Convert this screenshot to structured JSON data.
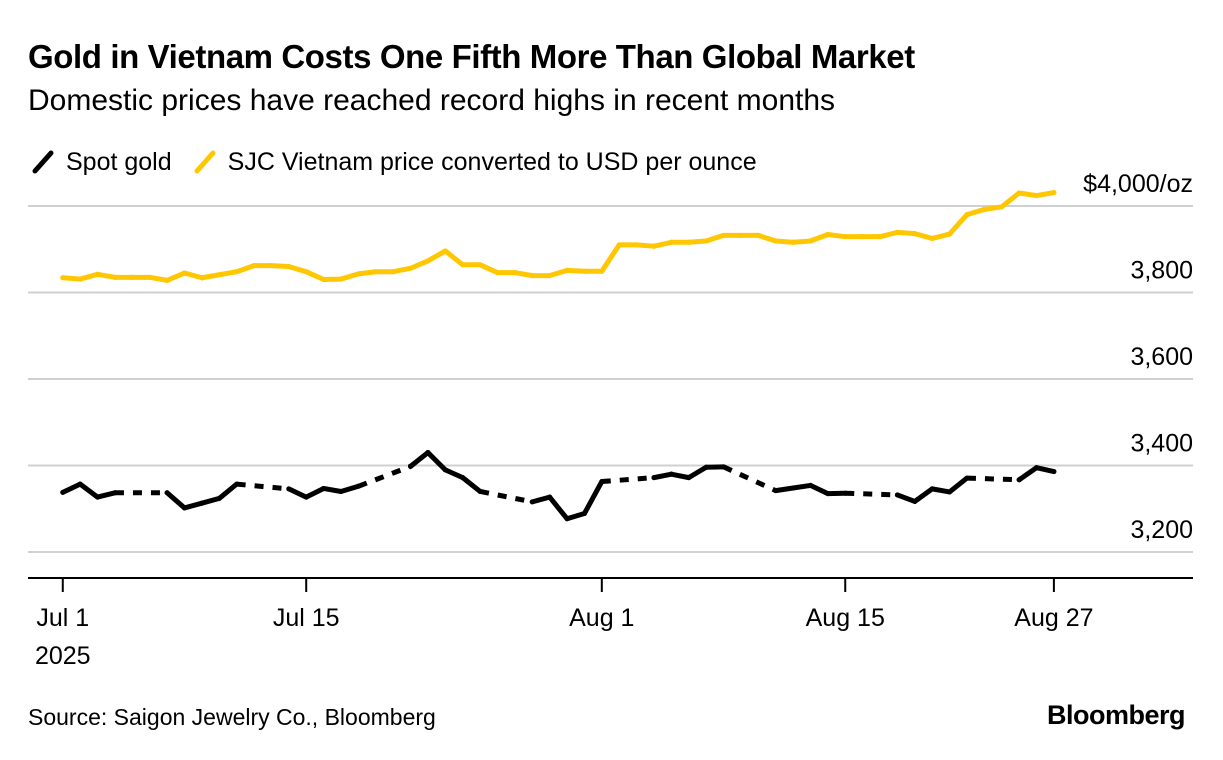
{
  "header": {
    "title": "Gold in Vietnam Costs One Fifth More Than Global Market",
    "subtitle": "Domestic prices have reached record highs in recent months"
  },
  "footer": {
    "source": "Source: Saigon Jewelry Co., Bloomberg",
    "logo": "Bloomberg"
  },
  "chart_data": {
    "type": "line",
    "title": "Gold in Vietnam Costs One Fifth More Than Global Market",
    "subtitle": "Domestic prices have reached record highs in recent months",
    "xlim": [
      "2025-06-29",
      "2025-09-04"
    ],
    "ylim": [
      3140,
      4060
    ],
    "y_ticks": [
      {
        "value": 4000,
        "label": "$4,000/oz"
      },
      {
        "value": 3800,
        "label": "3,800"
      },
      {
        "value": 3600,
        "label": "3,600"
      },
      {
        "value": 3400,
        "label": "3,400"
      },
      {
        "value": 3200,
        "label": "3,200"
      }
    ],
    "x_ticks": [
      {
        "date": "2025-07-01",
        "label": "Jul 1",
        "sublabel": "2025"
      },
      {
        "date": "2025-07-15",
        "label": "Jul 15"
      },
      {
        "date": "2025-08-01",
        "label": "Aug 1"
      },
      {
        "date": "2025-08-15",
        "label": "Aug 15"
      },
      {
        "date": "2025-08-27",
        "label": "Aug 27"
      }
    ],
    "grid": "horizontal",
    "legend_position": "top-left",
    "series": [
      {
        "name": "Spot gold",
        "color": "#000000",
        "legend_icon": "black-slash-icon",
        "points": [
          [
            "2025-07-01",
            3338
          ],
          [
            "2025-07-02",
            3357
          ],
          [
            "2025-07-03",
            3327
          ],
          [
            "2025-07-04",
            3337
          ],
          [
            "2025-07-07",
            3337
          ],
          [
            "2025-07-08",
            3302
          ],
          [
            "2025-07-09",
            3313
          ],
          [
            "2025-07-10",
            3324
          ],
          [
            "2025-07-11",
            3357
          ],
          [
            "2025-07-14",
            3346
          ],
          [
            "2025-07-15",
            3327
          ],
          [
            "2025-07-16",
            3347
          ],
          [
            "2025-07-17",
            3340
          ],
          [
            "2025-07-18",
            3352
          ],
          [
            "2025-07-21",
            3398
          ],
          [
            "2025-07-22",
            3430
          ],
          [
            "2025-07-23",
            3390
          ],
          [
            "2025-07-24",
            3372
          ],
          [
            "2025-07-25",
            3340
          ],
          [
            "2025-07-28",
            3316
          ],
          [
            "2025-07-29",
            3327
          ],
          [
            "2025-07-30",
            3277
          ],
          [
            "2025-07-31",
            3289
          ],
          [
            "2025-08-01",
            3363
          ],
          [
            "2025-08-04",
            3372
          ],
          [
            "2025-08-05",
            3380
          ],
          [
            "2025-08-06",
            3372
          ],
          [
            "2025-08-07",
            3396
          ],
          [
            "2025-08-08",
            3397
          ],
          [
            "2025-08-11",
            3342
          ],
          [
            "2025-08-12",
            3348
          ],
          [
            "2025-08-13",
            3354
          ],
          [
            "2025-08-14",
            3335
          ],
          [
            "2025-08-15",
            3336
          ],
          [
            "2025-08-18",
            3332
          ],
          [
            "2025-08-19",
            3317
          ],
          [
            "2025-08-20",
            3346
          ],
          [
            "2025-08-21",
            3339
          ],
          [
            "2025-08-22",
            3371
          ],
          [
            "2025-08-25",
            3367
          ],
          [
            "2025-08-26",
            3395
          ],
          [
            "2025-08-27",
            3386
          ]
        ]
      },
      {
        "name": "SJC Vietnam price converted to USD per ounce",
        "color": "#FFC700",
        "legend_icon": "yellow-slash-icon",
        "points": [
          [
            "2025-07-01",
            3834
          ],
          [
            "2025-07-02",
            3831
          ],
          [
            "2025-07-03",
            3842
          ],
          [
            "2025-07-04",
            3835
          ],
          [
            "2025-07-05",
            3835
          ],
          [
            "2025-07-06",
            3835
          ],
          [
            "2025-07-07",
            3828
          ],
          [
            "2025-07-08",
            3845
          ],
          [
            "2025-07-09",
            3834
          ],
          [
            "2025-07-10",
            3841
          ],
          [
            "2025-07-11",
            3848
          ],
          [
            "2025-07-12",
            3862
          ],
          [
            "2025-07-13",
            3862
          ],
          [
            "2025-07-14",
            3860
          ],
          [
            "2025-07-15",
            3848
          ],
          [
            "2025-07-16",
            3830
          ],
          [
            "2025-07-17",
            3831
          ],
          [
            "2025-07-18",
            3843
          ],
          [
            "2025-07-19",
            3848
          ],
          [
            "2025-07-20",
            3848
          ],
          [
            "2025-07-21",
            3856
          ],
          [
            "2025-07-22",
            3873
          ],
          [
            "2025-07-23",
            3896
          ],
          [
            "2025-07-24",
            3864
          ],
          [
            "2025-07-25",
            3864
          ],
          [
            "2025-07-26",
            3846
          ],
          [
            "2025-07-27",
            3846
          ],
          [
            "2025-07-28",
            3839
          ],
          [
            "2025-07-29",
            3839
          ],
          [
            "2025-07-30",
            3851
          ],
          [
            "2025-07-31",
            3849
          ],
          [
            "2025-08-01",
            3849
          ],
          [
            "2025-08-02",
            3910
          ],
          [
            "2025-08-03",
            3910
          ],
          [
            "2025-08-04",
            3907
          ],
          [
            "2025-08-05",
            3916
          ],
          [
            "2025-08-06",
            3916
          ],
          [
            "2025-08-07",
            3919
          ],
          [
            "2025-08-08",
            3932
          ],
          [
            "2025-08-09",
            3932
          ],
          [
            "2025-08-10",
            3932
          ],
          [
            "2025-08-11",
            3919
          ],
          [
            "2025-08-12",
            3916
          ],
          [
            "2025-08-13",
            3919
          ],
          [
            "2025-08-14",
            3934
          ],
          [
            "2025-08-15",
            3929
          ],
          [
            "2025-08-16",
            3929
          ],
          [
            "2025-08-17",
            3929
          ],
          [
            "2025-08-18",
            3939
          ],
          [
            "2025-08-19",
            3936
          ],
          [
            "2025-08-20",
            3925
          ],
          [
            "2025-08-21",
            3935
          ],
          [
            "2025-08-22",
            3980
          ],
          [
            "2025-08-23",
            3992
          ],
          [
            "2025-08-24",
            3998
          ],
          [
            "2025-08-25",
            4030
          ],
          [
            "2025-08-26",
            4024
          ],
          [
            "2025-08-27",
            4031
          ]
        ]
      }
    ],
    "notes": "Spot gold line is dashed across non-trading days (weekends); SJC series is continuous."
  }
}
